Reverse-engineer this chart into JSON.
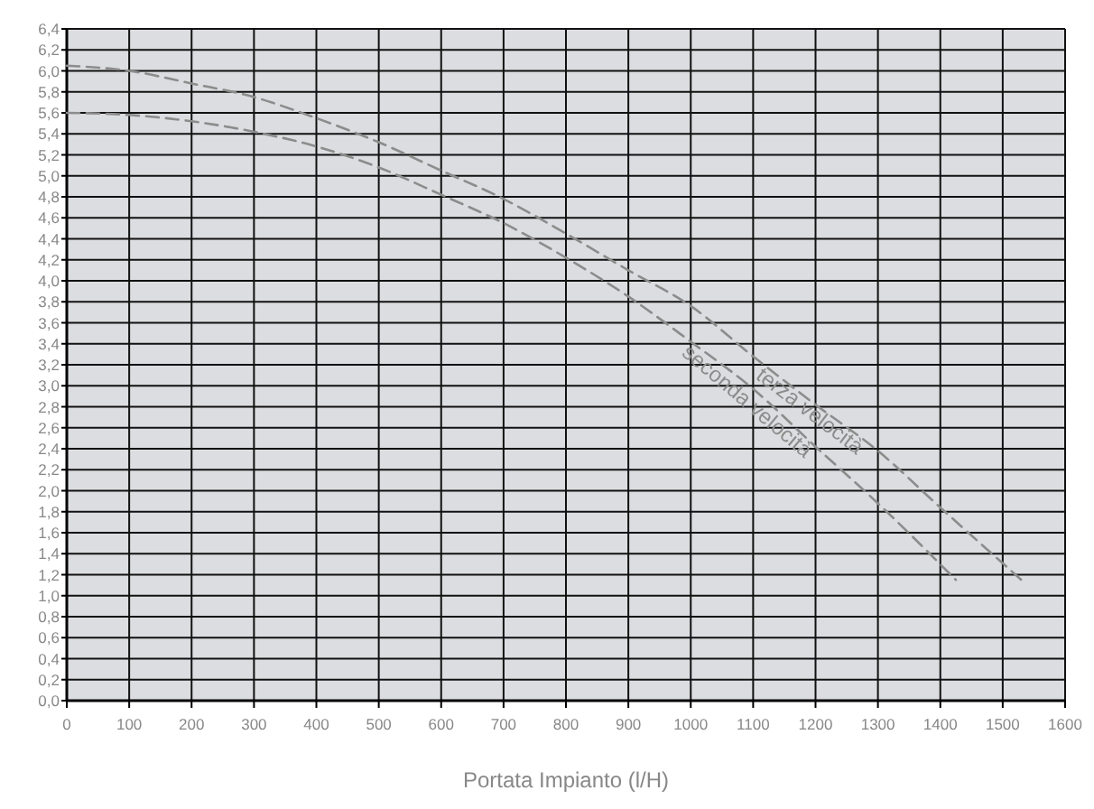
{
  "chart_data": {
    "type": "line",
    "xlabel": "Portata Impianto (l/H)",
    "xlim": [
      0,
      1600
    ],
    "ylim": [
      0,
      6.4
    ],
    "xticks": [
      0,
      100,
      200,
      300,
      400,
      500,
      600,
      700,
      800,
      900,
      1000,
      1100,
      1200,
      1300,
      1400,
      1500,
      1600
    ],
    "yticks": [
      {
        "value": 0,
        "label": "0,0"
      },
      {
        "value": 0.2,
        "label": "0,2"
      },
      {
        "value": 0.4,
        "label": "0,4"
      },
      {
        "value": 0.6,
        "label": "0,6"
      },
      {
        "value": 0.8,
        "label": "0,8"
      },
      {
        "value": 1,
        "label": "1,0"
      },
      {
        "value": 1.2,
        "label": "1,2"
      },
      {
        "value": 1.4,
        "label": "1,4"
      },
      {
        "value": 1.6,
        "label": "1,6"
      },
      {
        "value": 1.8,
        "label": "1,8"
      },
      {
        "value": 2,
        "label": "2,0"
      },
      {
        "value": 2.2,
        "label": "2,2"
      },
      {
        "value": 2.4,
        "label": "2,4"
      },
      {
        "value": 2.6,
        "label": "2,6"
      },
      {
        "value": 2.8,
        "label": "2,8"
      },
      {
        "value": 3,
        "label": "3,0"
      },
      {
        "value": 3.2,
        "label": "3,2"
      },
      {
        "value": 3.4,
        "label": "3,4"
      },
      {
        "value": 3.6,
        "label": "3,6"
      },
      {
        "value": 3.8,
        "label": "3,8"
      },
      {
        "value": 4,
        "label": "4,0"
      },
      {
        "value": 4.2,
        "label": "4,2"
      },
      {
        "value": 4.4,
        "label": "4,4"
      },
      {
        "value": 4.6,
        "label": "4,6"
      },
      {
        "value": 4.8,
        "label": "4,8"
      },
      {
        "value": 5,
        "label": "5,0"
      },
      {
        "value": 5.2,
        "label": "5,2"
      },
      {
        "value": 5.4,
        "label": "5,4"
      },
      {
        "value": 5.6,
        "label": "5,6"
      },
      {
        "value": 5.8,
        "label": "5,8"
      },
      {
        "value": 6,
        "label": "6,0"
      },
      {
        "value": 6.2,
        "label": "6,2"
      },
      {
        "value": 6.4,
        "label": "6,4"
      }
    ],
    "grid": true,
    "line_style": "dashed",
    "marker": "none",
    "series": [
      {
        "name": "terza velocità",
        "color": "#8c8c8c",
        "x": [
          0,
          100,
          200,
          300,
          400,
          500,
          600,
          700,
          800,
          900,
          1000,
          1100,
          1200,
          1300,
          1400,
          1530
        ],
        "values": [
          6.05,
          6.0,
          5.88,
          5.75,
          5.55,
          5.32,
          5.05,
          4.78,
          4.45,
          4.1,
          3.76,
          3.28,
          2.82,
          2.38,
          1.84,
          1.15
        ]
      },
      {
        "name": "seconda velocità",
        "color": "#8c8c8c",
        "x": [
          0,
          100,
          200,
          300,
          400,
          500,
          600,
          700,
          800,
          900,
          1000,
          1100,
          1200,
          1300,
          1425
        ],
        "values": [
          5.6,
          5.58,
          5.52,
          5.42,
          5.28,
          5.08,
          4.82,
          4.55,
          4.22,
          3.85,
          3.42,
          2.97,
          2.42,
          1.88,
          1.15
        ]
      }
    ]
  }
}
